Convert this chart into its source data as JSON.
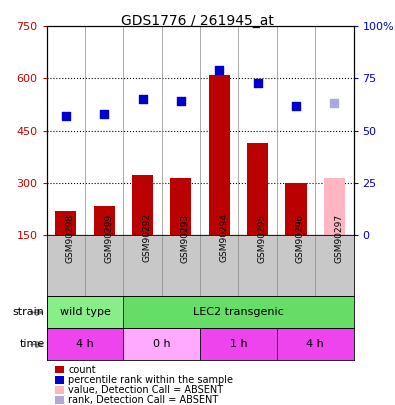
{
  "title": "GDS1776 / 261945_at",
  "samples": [
    "GSM90298",
    "GSM90299",
    "GSM90292",
    "GSM90293",
    "GSM90294",
    "GSM90295",
    "GSM90296",
    "GSM90297"
  ],
  "counts": [
    220,
    232,
    323,
    313,
    610,
    413,
    300,
    315
  ],
  "ranks": [
    57,
    58,
    65,
    64,
    79,
    73,
    62,
    63
  ],
  "absent_flags": [
    false,
    false,
    false,
    false,
    false,
    false,
    false,
    true
  ],
  "ylim_left": [
    150,
    750
  ],
  "ylim_right": [
    0,
    100
  ],
  "yticks_left": [
    150,
    300,
    450,
    600,
    750
  ],
  "yticks_right": [
    0,
    25,
    50,
    75,
    100
  ],
  "ytick_labels_left": [
    "150",
    "300",
    "450",
    "600",
    "750"
  ],
  "ytick_labels_right": [
    "0",
    "25",
    "50",
    "75",
    "100%"
  ],
  "strain_groups": [
    {
      "label": "wild type",
      "start": 0,
      "end": 2,
      "color": "#88EE88"
    },
    {
      "label": "LEC2 transgenic",
      "start": 2,
      "end": 8,
      "color": "#66DD66"
    }
  ],
  "time_groups": [
    {
      "label": "4 h",
      "start": 0,
      "end": 2,
      "color": "#EE44EE"
    },
    {
      "label": "0 h",
      "start": 2,
      "end": 4,
      "color": "#FFAAFF"
    },
    {
      "label": "1 h",
      "start": 4,
      "end": 6,
      "color": "#EE44EE"
    },
    {
      "label": "4 h",
      "start": 6,
      "end": 8,
      "color": "#EE44EE"
    }
  ],
  "bar_color_normal": "#BB0000",
  "bar_color_absent": "#FFB6C1",
  "rank_color_normal": "#0000CC",
  "rank_color_absent": "#AAAADD",
  "bg_color": "#FFFFFF",
  "plot_bg": "#FFFFFF",
  "label_color_left": "#CC0000",
  "label_color_right": "#0000CC",
  "xlabel_bg": "#C8C8C8",
  "legend_items": [
    {
      "color": "#BB0000",
      "label": "count"
    },
    {
      "color": "#0000CC",
      "label": "percentile rank within the sample"
    },
    {
      "color": "#FFB6C1",
      "label": "value, Detection Call = ABSENT"
    },
    {
      "color": "#AAAADD",
      "label": "rank, Detection Call = ABSENT"
    }
  ]
}
